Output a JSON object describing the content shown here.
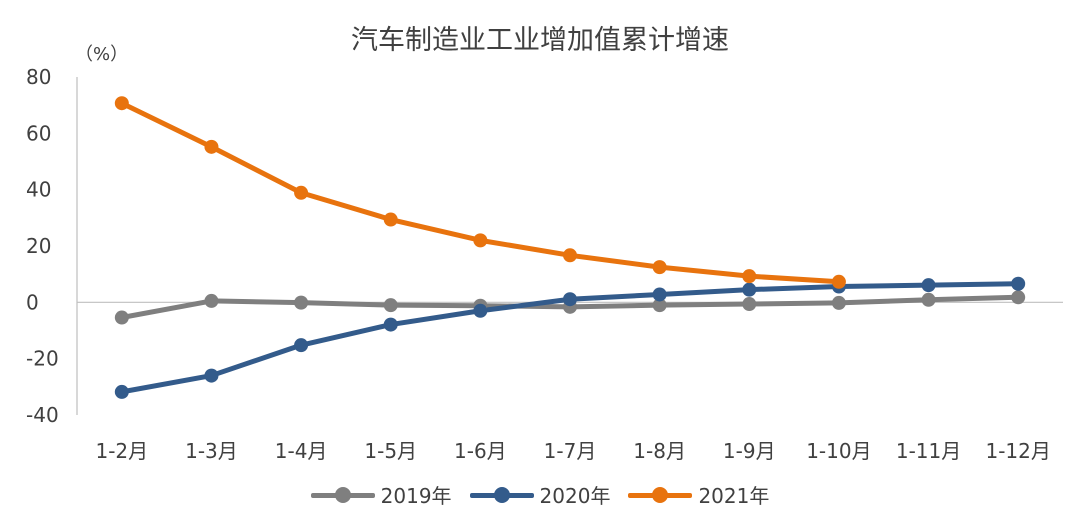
{
  "chart_data": {
    "type": "line",
    "title": "汽车制造业工业增加值累计增速",
    "unit": "（%）",
    "xlabel": "",
    "ylabel": "",
    "ylim": [
      -40,
      80
    ],
    "yticks": [
      "80",
      "60",
      "40",
      "20",
      "0",
      "-20",
      "-40"
    ],
    "categories": [
      "1-2月",
      "1-3月",
      "1-4月",
      "1-5月",
      "1-6月",
      "1-7月",
      "1-8月",
      "1-9月",
      "1-10月",
      "1-11月",
      "1-12月"
    ],
    "legend_position": "bottom",
    "grid": false,
    "series": [
      {
        "name": "2019年",
        "color": "#7f7f7f",
        "values": [
          -5.4,
          0.5,
          -0.1,
          -1.0,
          -1.2,
          -1.6,
          -1.0,
          -0.6,
          -0.2,
          0.9,
          1.8
        ]
      },
      {
        "name": "2020年",
        "color": "#335b8b",
        "values": [
          -31.8,
          -26.0,
          -15.2,
          -7.9,
          -3.0,
          1.1,
          2.8,
          4.5,
          5.6,
          6.1,
          6.6
        ]
      },
      {
        "name": "2021年",
        "color": "#e8730e",
        "values": [
          70.7,
          55.2,
          38.9,
          29.4,
          22.0,
          16.7,
          12.5,
          9.3,
          7.3,
          null,
          null
        ]
      }
    ]
  }
}
